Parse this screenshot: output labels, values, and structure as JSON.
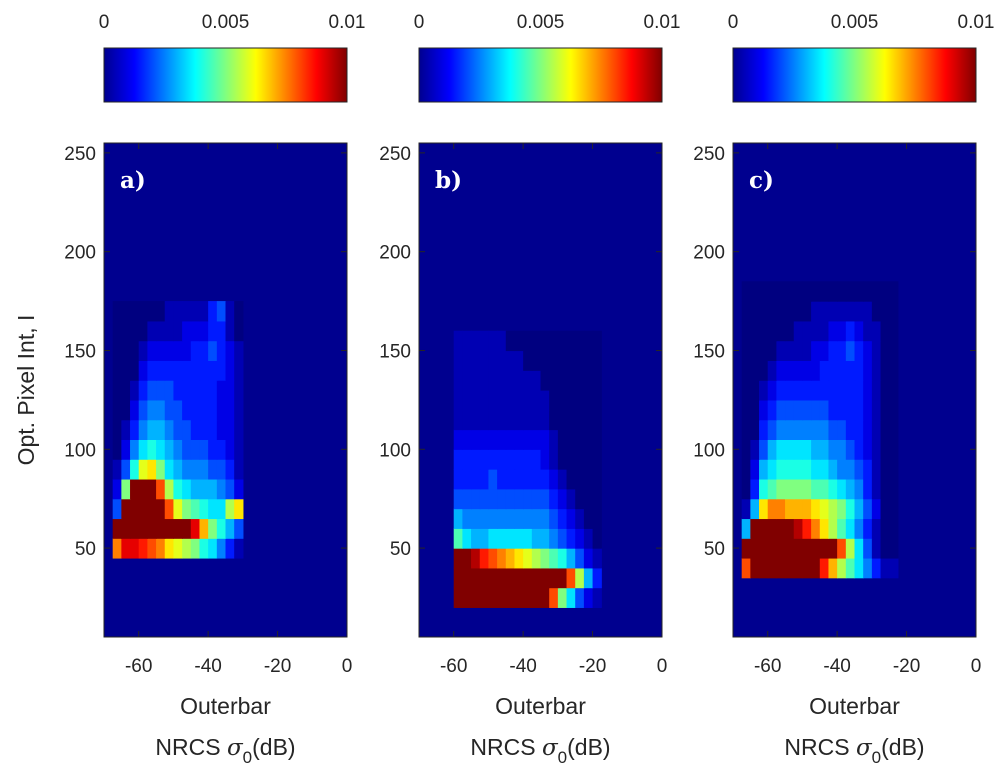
{
  "chart_data": [
    {
      "type": "heatmap",
      "panel_label": "a)",
      "xlabel_line1": "Outerbar",
      "xlabel_line2_prefix": "NRCS ",
      "xlabel_symbol": "σ",
      "xlabel_subscript": "0",
      "xlabel_line2_suffix": "(dB)",
      "ylabel": "Opt. Pixel Int, I",
      "xlim": [
        -70,
        0
      ],
      "ylim": [
        5,
        255
      ],
      "xticks": [
        -60,
        -40,
        -20,
        0
      ],
      "yticks": [
        50,
        100,
        150,
        200,
        250
      ],
      "clim": [
        0,
        0.01
      ],
      "colorbar_ticks": [
        "0",
        "0.005",
        "0.01"
      ],
      "colormap": "jet",
      "bin_width_x": 2.5,
      "bin_height_y": 10,
      "x_bins_from": -67.5,
      "y_bins_from": 45,
      "rows": [
        [
          0.0075,
          0.009,
          0.009,
          0.0085,
          0.008,
          0.0075,
          0.0065,
          0.006,
          0.0055,
          0.005,
          0.004,
          0.0035,
          0.0025,
          0.0015,
          0.0005
        ],
        [
          0.014,
          0.014,
          0.014,
          0.014,
          0.014,
          0.014,
          0.013,
          0.012,
          0.011,
          0.009,
          0.007,
          0.005,
          0.004,
          0.003,
          0.002
        ],
        [
          0.002,
          0.013,
          0.014,
          0.014,
          0.013,
          0.011,
          0.008,
          0.006,
          0.005,
          0.0045,
          0.004,
          0.0035,
          0.0035,
          0.0055,
          0.0065
        ],
        [
          0.001,
          0.005,
          0.012,
          0.012,
          0.012,
          0.008,
          0.0055,
          0.004,
          0.0035,
          0.003,
          0.003,
          0.003,
          0.0025,
          0.002,
          0.001
        ],
        [
          0.0005,
          0.002,
          0.004,
          0.006,
          0.0065,
          0.005,
          0.0035,
          0.003,
          0.0025,
          0.0025,
          0.0025,
          0.002,
          0.002,
          0.0015,
          0.0005
        ],
        [
          0.0,
          0.001,
          0.0025,
          0.0035,
          0.004,
          0.0035,
          0.003,
          0.0025,
          0.002,
          0.002,
          0.002,
          0.0015,
          0.0015,
          0.001,
          0.0005
        ],
        [
          0.0,
          0.0005,
          0.0015,
          0.0025,
          0.003,
          0.003,
          0.0025,
          0.002,
          0.002,
          0.0015,
          0.0015,
          0.0015,
          0.001,
          0.001,
          0.0005
        ],
        [
          0.0,
          0.0,
          0.001,
          0.002,
          0.0025,
          0.0025,
          0.002,
          0.002,
          0.0015,
          0.0015,
          0.0015,
          0.0015,
          0.001,
          0.001,
          0.0005
        ],
        [
          0.0,
          0.0,
          0.0005,
          0.0015,
          0.002,
          0.002,
          0.002,
          0.0015,
          0.0015,
          0.0015,
          0.0015,
          0.0015,
          0.001,
          0.001,
          0.0005
        ],
        [
          0.0,
          0.0,
          0.0,
          0.001,
          0.0015,
          0.0015,
          0.0015,
          0.0015,
          0.0015,
          0.0015,
          0.0015,
          0.0015,
          0.0015,
          0.001,
          0.0005
        ],
        [
          0.0,
          0.0,
          0.0,
          0.0005,
          0.001,
          0.001,
          0.001,
          0.001,
          0.001,
          0.0015,
          0.0015,
          0.002,
          0.0015,
          0.001,
          0.0005
        ],
        [
          0.0,
          0.0,
          0.0,
          0.0,
          0.0005,
          0.0005,
          0.0005,
          0.0005,
          0.001,
          0.001,
          0.001,
          0.0015,
          0.0015,
          0.0005,
          0.0
        ],
        [
          0.0,
          0.0,
          0.0,
          0.0,
          0.0,
          0.0,
          0.0005,
          0.0005,
          0.0005,
          0.0005,
          0.0005,
          0.0015,
          0.002,
          0.0005,
          0.0
        ]
      ]
    },
    {
      "type": "heatmap",
      "panel_label": "b)",
      "xlabel_line1": "Outerbar",
      "xlabel_line2_prefix": "NRCS ",
      "xlabel_symbol": "σ",
      "xlabel_subscript": "0",
      "xlabel_line2_suffix": "(dB)",
      "xlim": [
        -70,
        0
      ],
      "ylim": [
        5,
        255
      ],
      "xticks": [
        -60,
        -40,
        -20,
        0
      ],
      "yticks": [
        50,
        100,
        150,
        200,
        250
      ],
      "clim": [
        0,
        0.01
      ],
      "colorbar_ticks": [
        "0",
        "0.005",
        "0.01"
      ],
      "colormap": "jet",
      "bin_width_x": 2.5,
      "bin_height_y": 10,
      "x_bins_from": -60,
      "y_bins_from": 20,
      "rows": [
        [
          0.014,
          0.014,
          0.014,
          0.014,
          0.014,
          0.014,
          0.014,
          0.014,
          0.014,
          0.014,
          0.011,
          0.008,
          0.005,
          0.0035,
          0.002,
          0.001,
          0.0005
        ],
        [
          0.014,
          0.014,
          0.014,
          0.014,
          0.014,
          0.014,
          0.014,
          0.014,
          0.014,
          0.014,
          0.014,
          0.014,
          0.014,
          0.008,
          0.0055,
          0.003,
          0.0015
        ],
        [
          0.014,
          0.014,
          0.0095,
          0.0085,
          0.008,
          0.0075,
          0.007,
          0.0065,
          0.006,
          0.0055,
          0.005,
          0.0045,
          0.004,
          0.003,
          0.002,
          0.001,
          0.0005
        ],
        [
          0.0045,
          0.0035,
          0.003,
          0.003,
          0.0035,
          0.0035,
          0.0035,
          0.0035,
          0.0035,
          0.003,
          0.003,
          0.0025,
          0.002,
          0.0015,
          0.001,
          0.0005,
          0.0
        ],
        [
          0.003,
          0.0025,
          0.0025,
          0.0025,
          0.0025,
          0.0025,
          0.0025,
          0.0025,
          0.0025,
          0.0025,
          0.0025,
          0.002,
          0.0015,
          0.001,
          0.0005,
          0.0,
          0.0
        ],
        [
          0.002,
          0.002,
          0.002,
          0.002,
          0.002,
          0.002,
          0.002,
          0.002,
          0.002,
          0.002,
          0.002,
          0.0015,
          0.001,
          0.0005,
          0.0,
          0.0,
          0.0
        ],
        [
          0.0015,
          0.0015,
          0.0015,
          0.0015,
          0.002,
          0.0015,
          0.0015,
          0.0015,
          0.0015,
          0.0015,
          0.0015,
          0.001,
          0.0005,
          0.0,
          0.0,
          0.0,
          0.0
        ],
        [
          0.0015,
          0.0015,
          0.0015,
          0.0015,
          0.0015,
          0.0015,
          0.0015,
          0.0015,
          0.0015,
          0.0015,
          0.001,
          0.0005,
          0.0,
          0.0,
          0.0,
          0.0,
          0.0
        ],
        [
          0.001,
          0.001,
          0.001,
          0.001,
          0.001,
          0.001,
          0.001,
          0.001,
          0.001,
          0.001,
          0.001,
          0.0005,
          0.0,
          0.0,
          0.0,
          0.0,
          0.0
        ],
        [
          0.0005,
          0.0005,
          0.0005,
          0.0005,
          0.0005,
          0.0005,
          0.0005,
          0.0005,
          0.0005,
          0.0005,
          0.0005,
          0.0,
          0.0,
          0.0,
          0.0,
          0.0,
          0.0
        ],
        [
          0.0005,
          0.0005,
          0.0005,
          0.0005,
          0.0005,
          0.0005,
          0.0005,
          0.0005,
          0.0005,
          0.0005,
          0.0005,
          0.0,
          0.0,
          0.0,
          0.0,
          0.0,
          0.0
        ],
        [
          0.0005,
          0.0005,
          0.0005,
          0.0005,
          0.0005,
          0.0005,
          0.0005,
          0.0005,
          0.0005,
          0.0005,
          0.0,
          0.0,
          0.0,
          0.0,
          0.0,
          0.0,
          0.0
        ],
        [
          0.0005,
          0.0005,
          0.0005,
          0.0005,
          0.0005,
          0.0005,
          0.0005,
          0.0005,
          0.0,
          0.0,
          0.0,
          0.0,
          0.0,
          0.0,
          0.0,
          0.0,
          0.0
        ],
        [
          0.0005,
          0.0005,
          0.0005,
          0.0005,
          0.0005,
          0.0005,
          0.0,
          0.0,
          0.0,
          0.0,
          0.0,
          0.0,
          0.0,
          0.0,
          0.0,
          0.0,
          0.0
        ]
      ]
    },
    {
      "type": "heatmap",
      "panel_label": "c)",
      "xlabel_line1": "Outerbar",
      "xlabel_line2_prefix": "NRCS ",
      "xlabel_symbol": "σ",
      "xlabel_subscript": "0",
      "xlabel_line2_suffix": "(dB)",
      "xlim": [
        -70,
        0
      ],
      "ylim": [
        5,
        255
      ],
      "xticks": [
        -60,
        -40,
        -20,
        0
      ],
      "yticks": [
        50,
        100,
        150,
        200,
        250
      ],
      "clim": [
        0,
        0.01
      ],
      "colorbar_ticks": [
        "0",
        "0.005",
        "0.01"
      ],
      "colormap": "jet",
      "bin_width_x": 2.5,
      "bin_height_y": 10,
      "x_bins_from": -67.5,
      "y_bins_from": 35,
      "rows": [
        [
          0.008,
          0.014,
          0.014,
          0.014,
          0.014,
          0.014,
          0.014,
          0.013,
          0.011,
          0.0085,
          0.007,
          0.0055,
          0.0045,
          0.0035,
          0.0025,
          0.0015,
          0.0005,
          0.0005
        ],
        [
          0.014,
          0.014,
          0.014,
          0.014,
          0.014,
          0.014,
          0.014,
          0.014,
          0.014,
          0.014,
          0.011,
          0.008,
          0.0055,
          0.0035,
          0.002,
          0.0005,
          0.0,
          0.0
        ],
        [
          0.003,
          0.014,
          0.014,
          0.014,
          0.012,
          0.0105,
          0.0095,
          0.0085,
          0.0075,
          0.0065,
          0.0055,
          0.0045,
          0.0035,
          0.0025,
          0.0015,
          0.0005,
          0.0,
          0.0
        ],
        [
          0.0005,
          0.003,
          0.0065,
          0.0075,
          0.0075,
          0.007,
          0.007,
          0.007,
          0.0065,
          0.006,
          0.0055,
          0.005,
          0.004,
          0.003,
          0.002,
          0.001,
          0.0,
          0.0
        ],
        [
          0.0,
          0.0015,
          0.004,
          0.0045,
          0.005,
          0.005,
          0.005,
          0.005,
          0.0045,
          0.0045,
          0.004,
          0.0035,
          0.003,
          0.0025,
          0.0015,
          0.0005,
          0.0,
          0.0
        ],
        [
          0.0,
          0.001,
          0.003,
          0.0035,
          0.004,
          0.004,
          0.004,
          0.004,
          0.0035,
          0.0035,
          0.003,
          0.0025,
          0.0025,
          0.002,
          0.0015,
          0.0005,
          0.0,
          0.0
        ],
        [
          0.0,
          0.0005,
          0.002,
          0.003,
          0.0035,
          0.0035,
          0.0035,
          0.0035,
          0.003,
          0.003,
          0.0025,
          0.0025,
          0.002,
          0.0015,
          0.001,
          0.0005,
          0.0,
          0.0
        ],
        [
          0.0,
          0.0,
          0.0015,
          0.002,
          0.0025,
          0.0025,
          0.0025,
          0.0025,
          0.0025,
          0.0025,
          0.002,
          0.002,
          0.0015,
          0.0015,
          0.001,
          0.0005,
          0.0,
          0.0
        ],
        [
          0.0,
          0.0,
          0.001,
          0.0015,
          0.002,
          0.002,
          0.002,
          0.002,
          0.002,
          0.002,
          0.0015,
          0.0015,
          0.0015,
          0.0015,
          0.001,
          0.0005,
          0.0,
          0.0
        ],
        [
          0.0,
          0.0,
          0.0005,
          0.001,
          0.0015,
          0.0015,
          0.0015,
          0.0015,
          0.0015,
          0.0015,
          0.0015,
          0.0015,
          0.0015,
          0.0015,
          0.001,
          0.0005,
          0.0,
          0.0
        ],
        [
          0.0,
          0.0,
          0.0,
          0.0005,
          0.001,
          0.001,
          0.001,
          0.001,
          0.001,
          0.0015,
          0.0015,
          0.0015,
          0.0015,
          0.0015,
          0.001,
          0.0005,
          0.0,
          0.0
        ],
        [
          0.0,
          0.0,
          0.0,
          0.0,
          0.0005,
          0.0005,
          0.0005,
          0.0005,
          0.001,
          0.001,
          0.0015,
          0.0015,
          0.002,
          0.0015,
          0.001,
          0.0005,
          0.0,
          0.0
        ],
        [
          0.0,
          0.0,
          0.0,
          0.0,
          0.0,
          0.0,
          0.0005,
          0.0005,
          0.0005,
          0.0005,
          0.001,
          0.001,
          0.0015,
          0.001,
          0.0005,
          0.0005,
          0.0,
          0.0
        ],
        [
          0.0,
          0.0,
          0.0,
          0.0,
          0.0,
          0.0,
          0.0,
          0.0,
          0.0005,
          0.0005,
          0.0005,
          0.0005,
          0.0005,
          0.0005,
          0.0005,
          0.0,
          0.0,
          0.0
        ],
        [
          0.0,
          0.0,
          0.0,
          0.0,
          0.0,
          0.0,
          0.0,
          0.0,
          0.0,
          0.0,
          0.0,
          0.0,
          0.0,
          0.0,
          0.0,
          0.0,
          0.0,
          0.0
        ]
      ]
    }
  ]
}
